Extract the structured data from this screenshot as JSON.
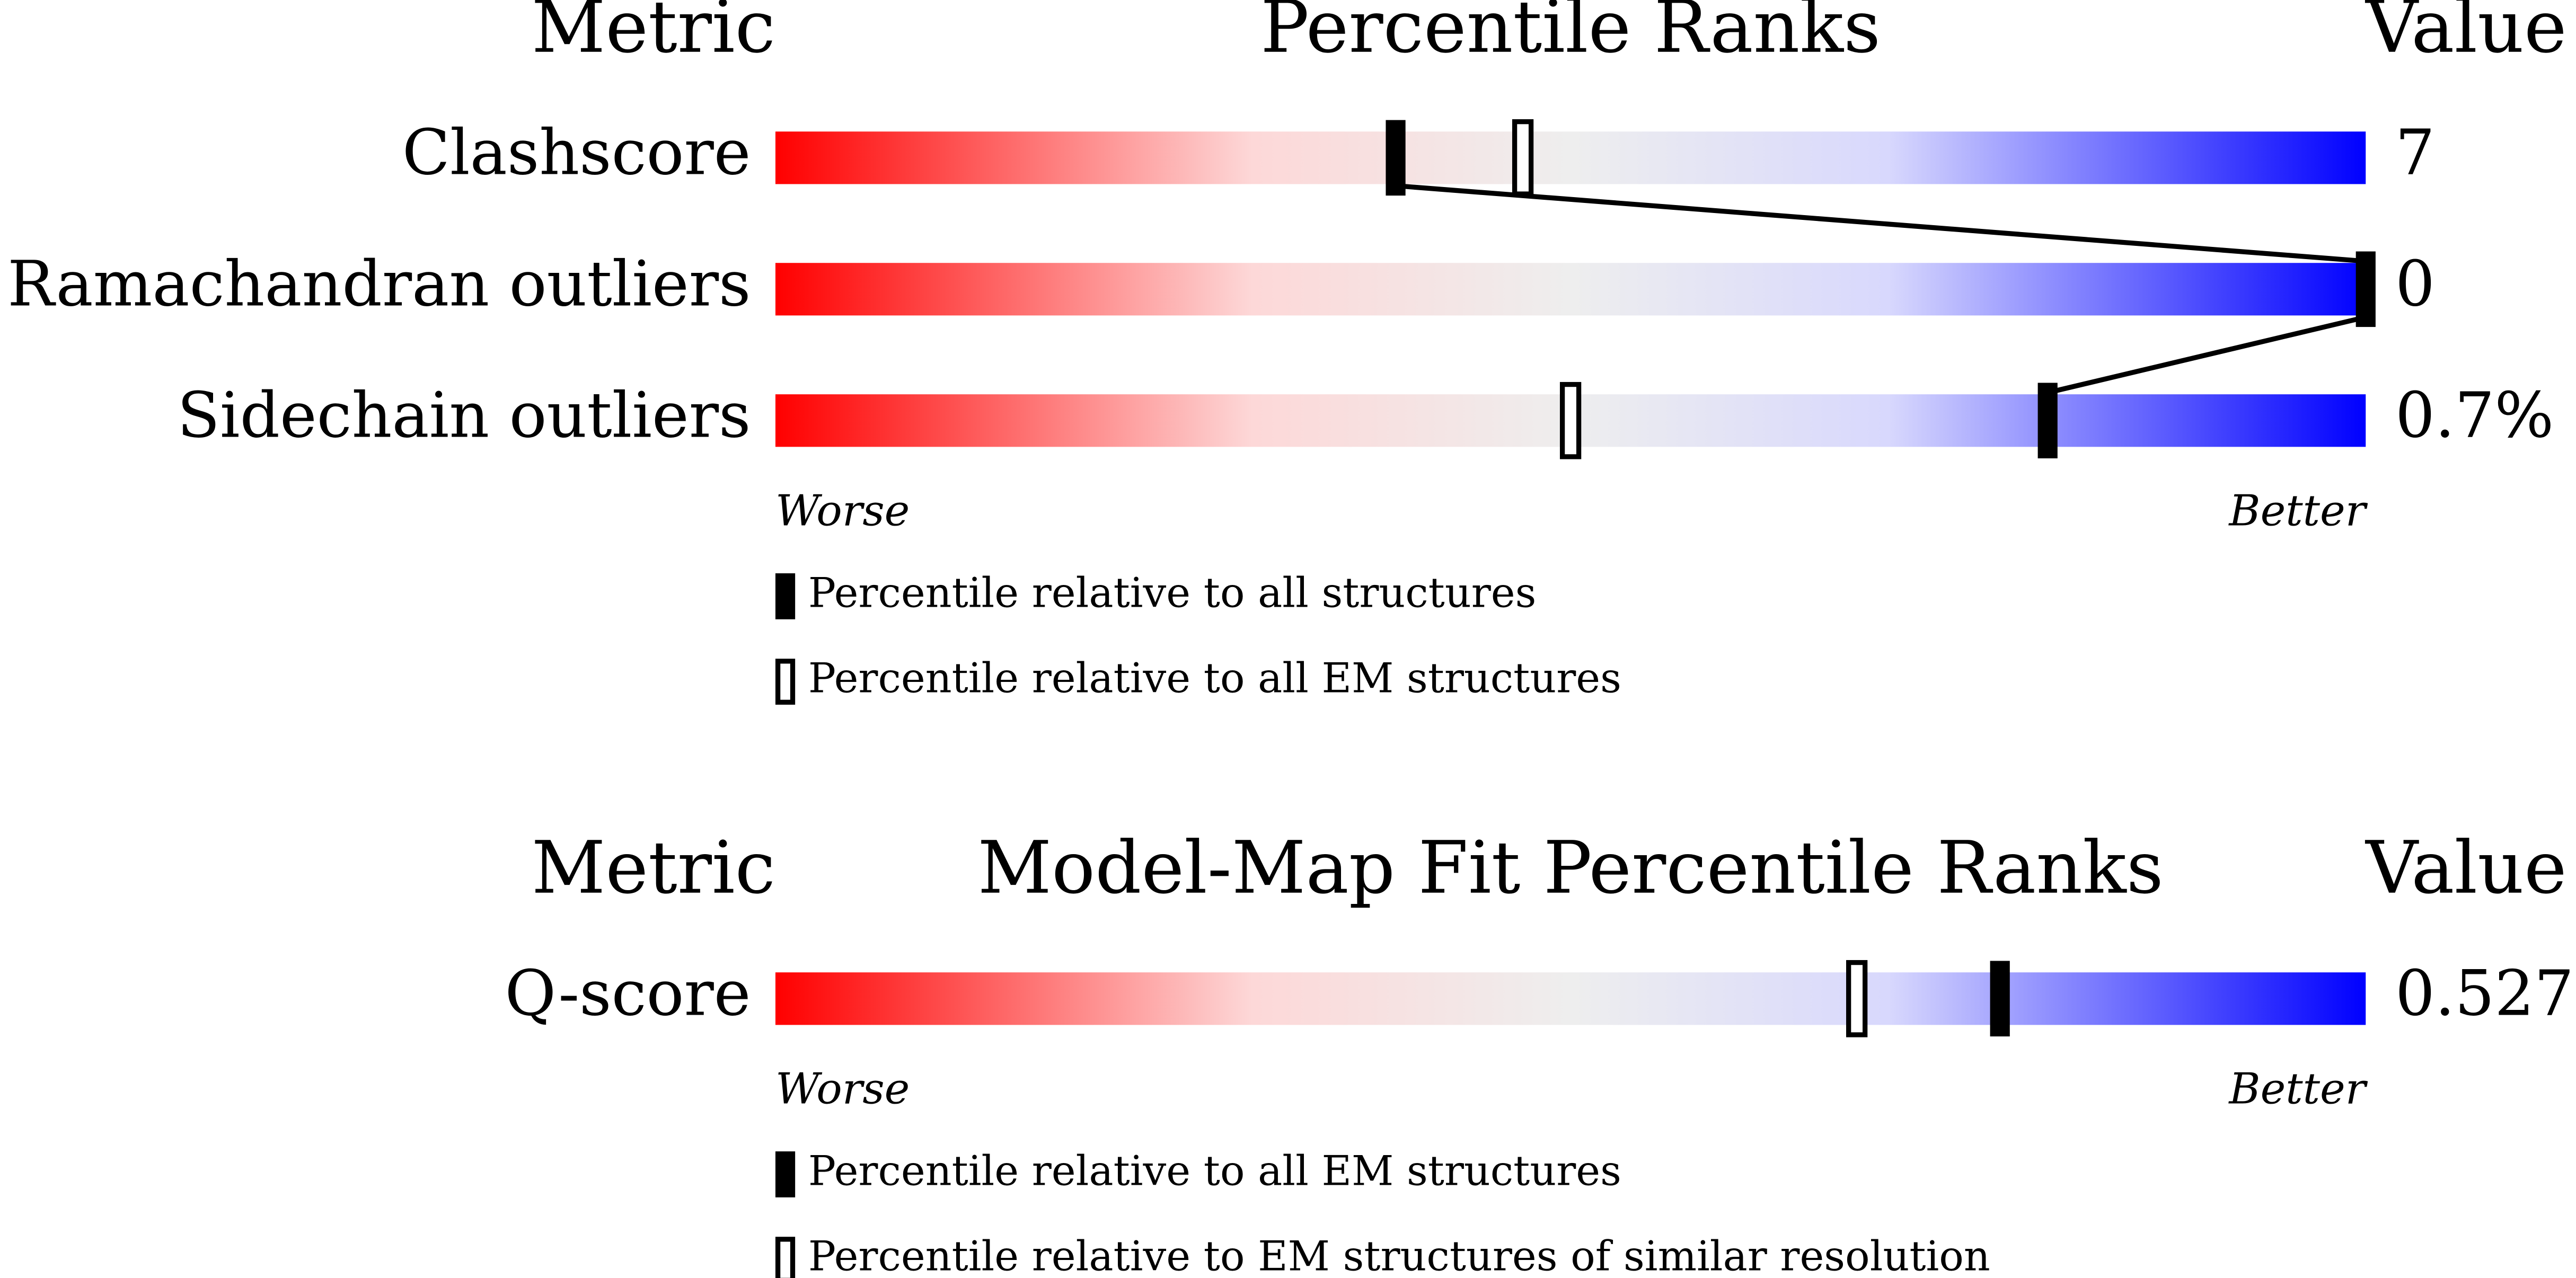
{
  "chart_data": [
    {
      "type": "percentile",
      "metric_header": "Metric",
      "title": "Percentile Ranks",
      "value_header": "Value",
      "xlim": [
        0,
        100
      ],
      "low_label": "Worse",
      "high_label": "Better",
      "categories": [
        "Clashscore",
        "Ramachandran outliers",
        "Sidechain outliers"
      ],
      "value_texts": [
        "7",
        "0",
        "0.7%"
      ],
      "series": [
        {
          "name": "Percentile relative to all structures",
          "style": "filled",
          "color": "#000000",
          "connect": true,
          "values": [
            39,
            100,
            80
          ]
        },
        {
          "name": "Percentile relative to all EM structures",
          "style": "hollow",
          "color": "#000000",
          "connect": false,
          "values": [
            47,
            null,
            50
          ]
        }
      ]
    },
    {
      "type": "percentile",
      "metric_header": "Metric",
      "title": "Model-Map Fit Percentile Ranks",
      "value_header": "Value",
      "xlim": [
        0,
        100
      ],
      "low_label": "Worse",
      "high_label": "Better",
      "categories": [
        "Q-score"
      ],
      "value_texts": [
        "0.527"
      ],
      "series": [
        {
          "name": "Percentile relative to all EM structures",
          "style": "filled",
          "color": "#000000",
          "connect": true,
          "values": [
            77
          ]
        },
        {
          "name": "Percentile relative to EM structures of similar resolution",
          "style": "hollow",
          "color": "#000000",
          "connect": false,
          "values": [
            68
          ]
        }
      ]
    }
  ]
}
